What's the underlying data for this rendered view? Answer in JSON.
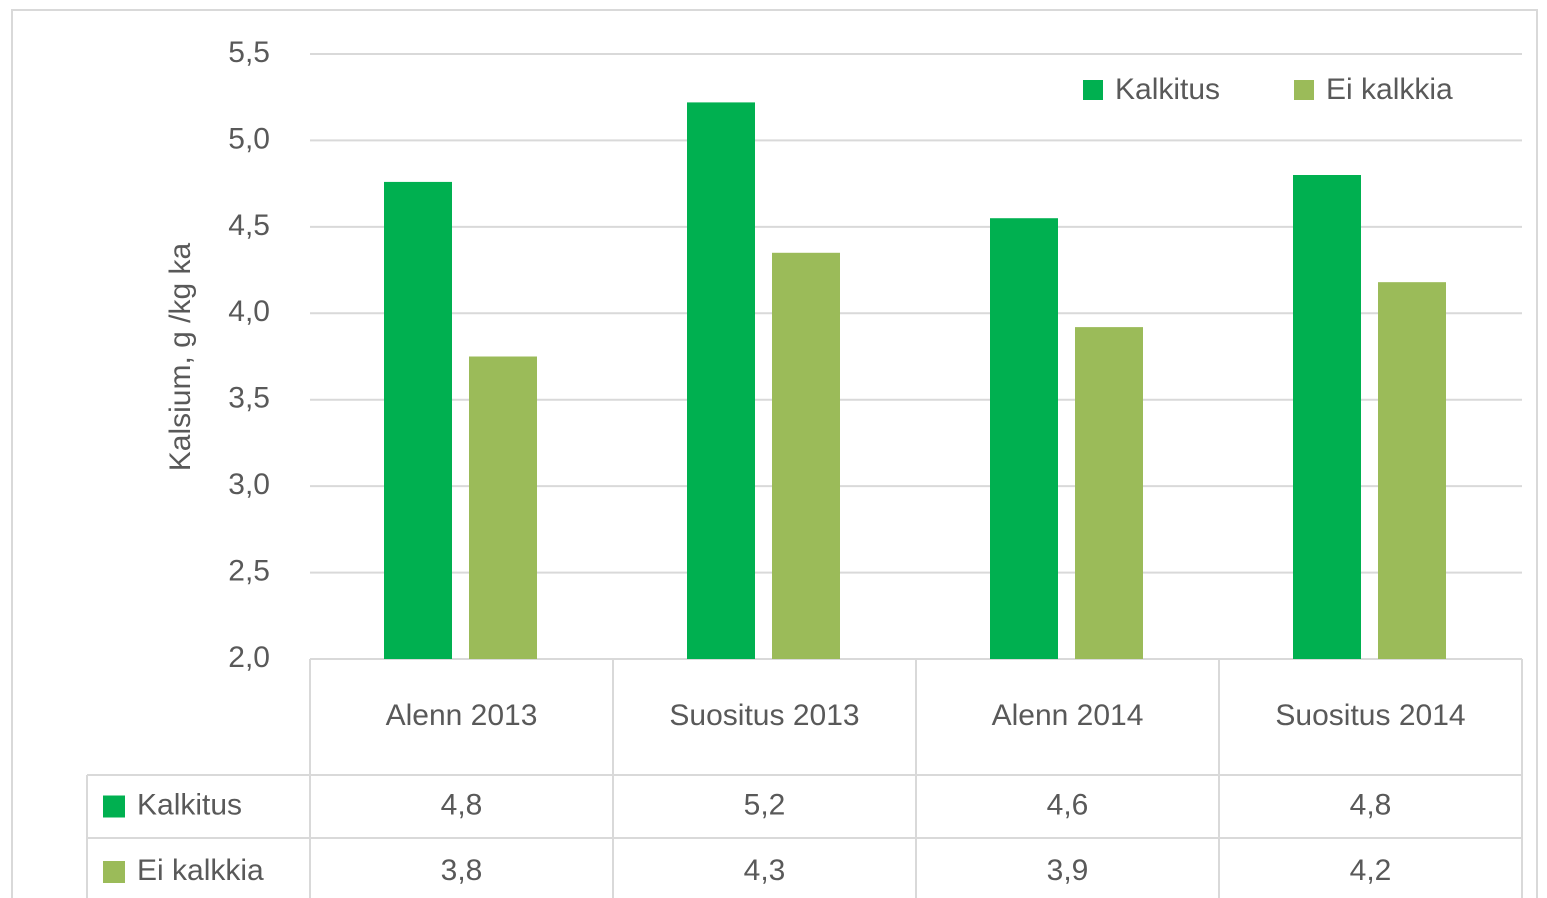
{
  "chart_data": {
    "type": "bar",
    "y_label": "Kalsium, g /kg ka",
    "categories": [
      "Alenn 2013",
      "Suositus 2013",
      "Alenn 2014",
      "Suositus 2014"
    ],
    "series": [
      {
        "name": "Kalkitus",
        "color": "#00b050",
        "values": [
          4.76,
          5.22,
          4.55,
          4.8
        ],
        "value_labels": [
          "4,8",
          "5,2",
          "4,6",
          "4,8"
        ]
      },
      {
        "name": "Ei kalkkia",
        "color": "#9bbb59",
        "values": [
          3.75,
          4.35,
          3.92,
          4.18
        ],
        "value_labels": [
          "3,8",
          "4,3",
          "3,9",
          "4,2"
        ]
      }
    ],
    "ylim": [
      2.0,
      5.5
    ],
    "yticks": [
      {
        "value": 2.0,
        "label": "2,0"
      },
      {
        "value": 2.5,
        "label": "2,5"
      },
      {
        "value": 3.0,
        "label": "3,0"
      },
      {
        "value": 3.5,
        "label": "3,5"
      },
      {
        "value": 4.0,
        "label": "4,0"
      },
      {
        "value": 4.5,
        "label": "4,5"
      },
      {
        "value": 5.0,
        "label": "5,0"
      },
      {
        "value": 5.5,
        "label": "5,5"
      }
    ],
    "grid": true,
    "legend": "top-right",
    "data_table": true
  }
}
